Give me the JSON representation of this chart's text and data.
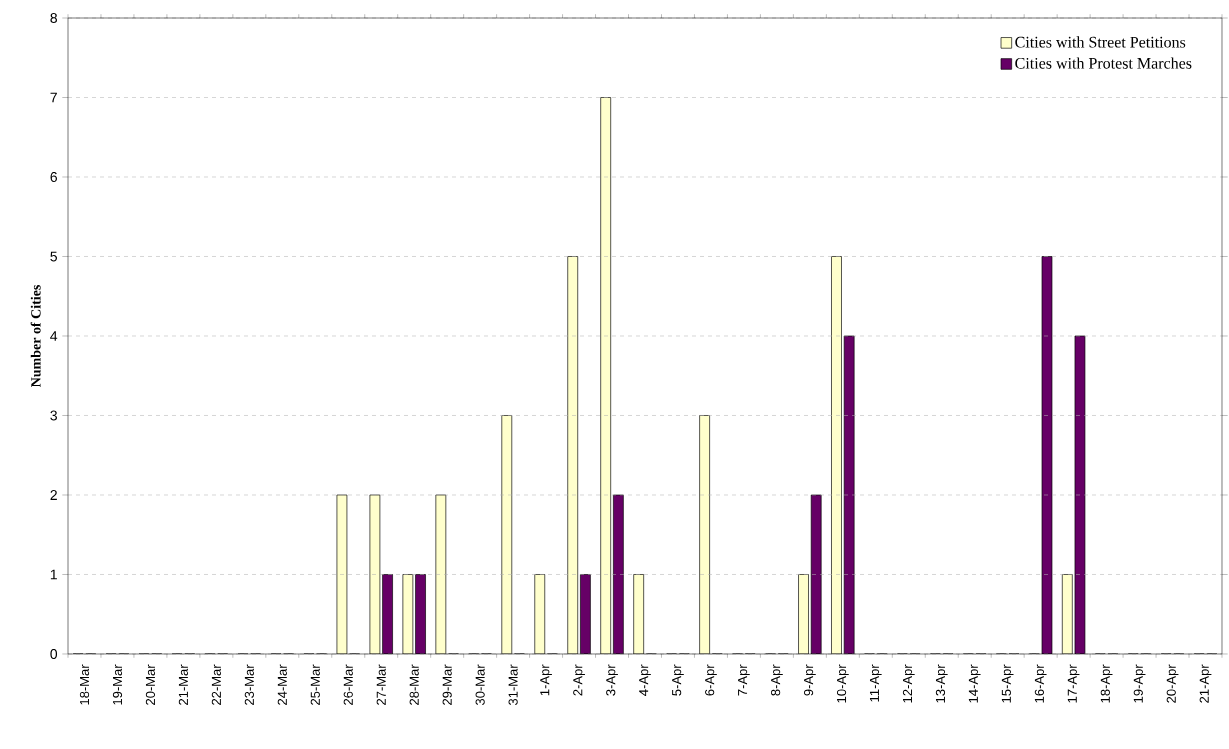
{
  "chart_data": {
    "type": "bar",
    "ylabel": "Number of Cities",
    "categories": [
      "18-Mar",
      "19-Mar",
      "20-Mar",
      "21-Mar",
      "22-Mar",
      "23-Mar",
      "24-Mar",
      "25-Mar",
      "26-Mar",
      "27-Mar",
      "28-Mar",
      "29-Mar",
      "30-Mar",
      "31-Mar",
      "1-Apr",
      "2-Apr",
      "3-Apr",
      "4-Apr",
      "5-Apr",
      "6-Apr",
      "7-Apr",
      "8-Apr",
      "9-Apr",
      "10-Apr",
      "11-Apr",
      "12-Apr",
      "13-Apr",
      "14-Apr",
      "15-Apr",
      "16-Apr",
      "17-Apr",
      "18-Apr",
      "19-Apr",
      "20-Apr",
      "21-Apr"
    ],
    "series": [
      {
        "name": "Cities with Street Petitions",
        "color": "#ffffcc",
        "values": [
          0,
          0,
          0,
          0,
          0,
          0,
          0,
          0,
          2,
          2,
          1,
          2,
          0,
          3,
          1,
          5,
          7,
          1,
          0,
          3,
          0,
          0,
          1,
          5,
          0,
          0,
          0,
          0,
          0,
          0,
          1,
          0,
          0,
          0,
          0
        ]
      },
      {
        "name": "Cities with Protest Marches",
        "color": "#660066",
        "values": [
          0,
          0,
          0,
          0,
          0,
          0,
          0,
          0,
          0,
          1,
          1,
          0,
          0,
          0,
          0,
          1,
          2,
          0,
          0,
          0,
          0,
          0,
          2,
          4,
          0,
          0,
          0,
          0,
          0,
          5,
          4,
          0,
          0,
          0,
          0
        ]
      }
    ],
    "ylim": [
      0,
      8
    ],
    "yticks": [
      0,
      1,
      2,
      3,
      4,
      5,
      6,
      7,
      8
    ],
    "grid": "y",
    "legend": "top right"
  }
}
